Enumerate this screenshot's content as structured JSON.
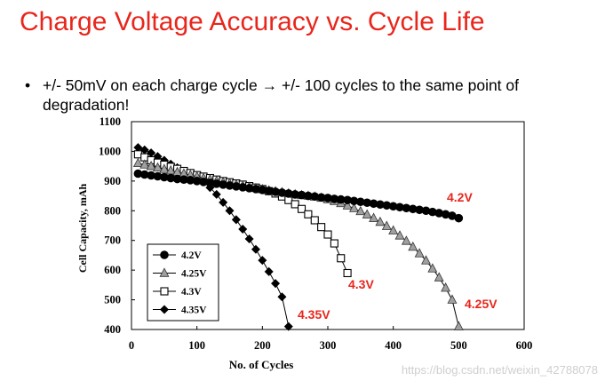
{
  "slide": {
    "title": "Charge Voltage Accuracy vs. Cycle Life",
    "bullet_marker": "•",
    "bullet_text_a": "+/- 50mV on each charge cycle",
    "bullet_arrow": "→",
    "bullet_text_b": "+/- 100 cycles to the same point of",
    "bullet_text_c": "degradation!"
  },
  "watermark": "https://blog.csdn.net/weixin_42788078",
  "chart_data": {
    "type": "line",
    "title": "",
    "xlabel": "No. of Cycles",
    "ylabel": "Cell Capacity, mAh",
    "xlim": [
      0,
      600
    ],
    "ylim": [
      400,
      1100
    ],
    "xticks": [
      0,
      100,
      200,
      300,
      400,
      500,
      600
    ],
    "yticks": [
      400,
      500,
      600,
      700,
      800,
      900,
      1000,
      1100
    ],
    "grid": false,
    "legend_position": "bottom-left",
    "series": [
      {
        "name": "4.2V",
        "marker": "circle-filled",
        "end_label": "4.2V",
        "x": [
          10,
          20,
          30,
          40,
          50,
          60,
          70,
          80,
          90,
          100,
          110,
          120,
          130,
          140,
          150,
          160,
          170,
          180,
          190,
          200,
          210,
          220,
          230,
          240,
          250,
          260,
          270,
          280,
          290,
          300,
          310,
          320,
          330,
          340,
          350,
          360,
          370,
          380,
          390,
          400,
          410,
          420,
          430,
          440,
          450,
          460,
          470,
          480,
          490,
          500
        ],
        "y": [
          925,
          922,
          919,
          916,
          913,
          910,
          907,
          905,
          903,
          900,
          897,
          894,
          891,
          888,
          885,
          882,
          879,
          876,
          873,
          870,
          867,
          864,
          861,
          858,
          855,
          853,
          850,
          848,
          845,
          843,
          840,
          838,
          836,
          833,
          830,
          827,
          824,
          821,
          818,
          815,
          812,
          809,
          806,
          803,
          800,
          796,
          792,
          788,
          783,
          775
        ]
      },
      {
        "name": "4.25V",
        "marker": "triangle-gray",
        "end_label": "4.25V",
        "x": [
          10,
          20,
          30,
          40,
          50,
          60,
          70,
          80,
          90,
          100,
          110,
          120,
          130,
          140,
          150,
          160,
          170,
          180,
          190,
          200,
          210,
          220,
          230,
          240,
          250,
          260,
          270,
          280,
          290,
          300,
          310,
          320,
          330,
          340,
          350,
          360,
          370,
          380,
          390,
          400,
          410,
          420,
          430,
          440,
          450,
          460,
          470,
          480,
          490,
          500
        ],
        "y": [
          960,
          955,
          950,
          945,
          940,
          935,
          930,
          925,
          920,
          915,
          910,
          905,
          900,
          896,
          892,
          888,
          884,
          880,
          876,
          872,
          868,
          865,
          862,
          858,
          855,
          852,
          850,
          847,
          843,
          838,
          832,
          825,
          817,
          808,
          798,
          787,
          775,
          762,
          748,
          733,
          716,
          698,
          678,
          656,
          632,
          605,
          575,
          540,
          500,
          410
        ]
      },
      {
        "name": "4.3V",
        "marker": "square-open",
        "end_label": "4.3V",
        "x": [
          10,
          20,
          30,
          40,
          50,
          60,
          70,
          80,
          90,
          100,
          110,
          120,
          130,
          140,
          150,
          160,
          170,
          180,
          190,
          200,
          210,
          220,
          230,
          240,
          250,
          260,
          270,
          280,
          290,
          300,
          310,
          320,
          330
        ],
        "y": [
          990,
          980,
          970,
          962,
          955,
          948,
          941,
          934,
          927,
          920,
          915,
          910,
          905,
          900,
          896,
          892,
          888,
          883,
          878,
          873,
          866,
          858,
          848,
          836,
          822,
          806,
          788,
          768,
          745,
          720,
          690,
          640,
          590
        ]
      },
      {
        "name": "4.35V",
        "marker": "diamond-filled",
        "end_label": "4.35V",
        "x": [
          10,
          20,
          30,
          40,
          50,
          60,
          70,
          80,
          90,
          100,
          110,
          120,
          130,
          140,
          150,
          160,
          170,
          180,
          190,
          200,
          210,
          220,
          230,
          240
        ],
        "y": [
          1013,
          1005,
          995,
          983,
          970,
          957,
          945,
          933,
          922,
          912,
          898,
          878,
          855,
          828,
          800,
          770,
          738,
          705,
          670,
          633,
          595,
          555,
          510,
          410
        ]
      }
    ]
  },
  "colors": {
    "title": "#e8261c",
    "end_labels": "#e8261c",
    "series_line": "#000000",
    "tri_fill": "#a0a0a0"
  }
}
